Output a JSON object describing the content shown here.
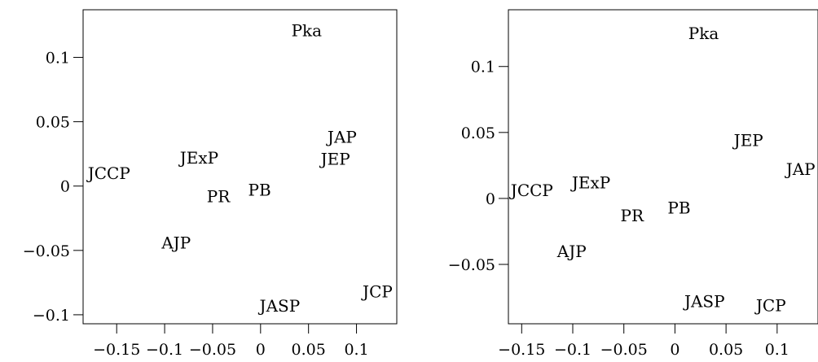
{
  "chart_data": [
    {
      "type": "scatter",
      "title": "",
      "xlabel": "",
      "ylabel": "",
      "xlim": [
        -0.185,
        0.142
      ],
      "ylim": [
        -0.107,
        0.137
      ],
      "x_ticks": [
        -0.15,
        -0.1,
        -0.05,
        0,
        0.05,
        0.1
      ],
      "x_tick_labels": [
        "−0.15",
        "−0.1",
        "−0.05",
        "0",
        "0.05",
        "0.1"
      ],
      "y_ticks": [
        -0.1,
        -0.05,
        0,
        0.05,
        0.1
      ],
      "y_tick_labels": [
        "−0.1",
        "−0.05",
        "0",
        "0.05",
        "0.1"
      ],
      "grid": false,
      "legend": "none",
      "points": [
        {
          "label": "Pka",
          "x": 0.048,
          "y": 0.121
        },
        {
          "label": "JAP",
          "x": 0.085,
          "y": 0.038
        },
        {
          "label": "JEP",
          "x": 0.078,
          "y": 0.021
        },
        {
          "label": "JExP",
          "x": -0.064,
          "y": 0.022
        },
        {
          "label": "JCCP",
          "x": -0.158,
          "y": 0.01
        },
        {
          "label": "PB",
          "x": -0.001,
          "y": -0.003
        },
        {
          "label": "PR",
          "x": -0.044,
          "y": -0.008
        },
        {
          "label": "AJP",
          "x": -0.088,
          "y": -0.044
        },
        {
          "label": "JCP",
          "x": 0.122,
          "y": -0.082
        },
        {
          "label": "JASP",
          "x": 0.02,
          "y": -0.093
        }
      ]
    },
    {
      "type": "scatter",
      "title": "",
      "xlabel": "",
      "ylabel": "",
      "xlim": [
        -0.163,
        0.14
      ],
      "ylim": [
        -0.095,
        0.143
      ],
      "x_ticks": [
        -0.15,
        -0.1,
        -0.05,
        0,
        0.05,
        0.1
      ],
      "x_tick_labels": [
        "−0.15",
        "−0.1",
        "−0.05",
        "0",
        "0.05",
        "0.1"
      ],
      "y_ticks": [
        -0.05,
        0,
        0.05,
        0.1
      ],
      "y_tick_labels": [
        "−0.05",
        "0",
        "0.05",
        "0.1"
      ],
      "grid": false,
      "legend": "none",
      "points": [
        {
          "label": "Pka",
          "x": 0.028,
          "y": 0.125
        },
        {
          "label": "JEP",
          "x": 0.072,
          "y": 0.044
        },
        {
          "label": "JAP",
          "x": 0.123,
          "y": 0.022
        },
        {
          "label": "JCCP",
          "x": -0.14,
          "y": 0.006
        },
        {
          "label": "JExP",
          "x": -0.082,
          "y": 0.012
        },
        {
          "label": "PB",
          "x": 0.004,
          "y": -0.007
        },
        {
          "label": "PR",
          "x": -0.042,
          "y": -0.013
        },
        {
          "label": "AJP",
          "x": -0.101,
          "y": -0.04
        },
        {
          "label": "JASP",
          "x": 0.029,
          "y": -0.078
        },
        {
          "label": "JCP",
          "x": 0.094,
          "y": -0.081
        }
      ]
    }
  ]
}
